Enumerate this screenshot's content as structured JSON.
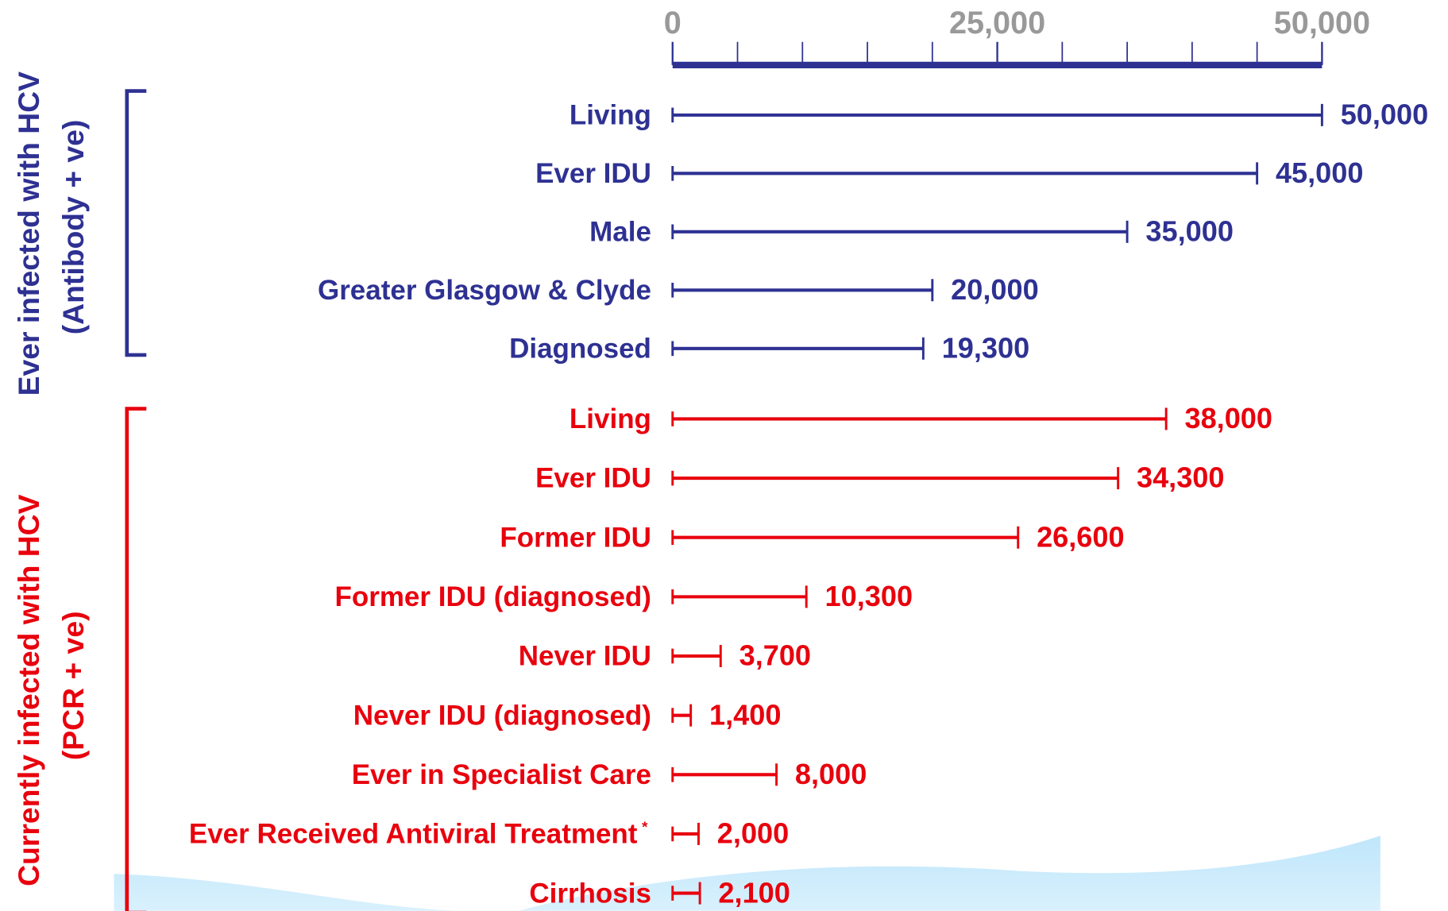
{
  "chart_data": {
    "type": "bar",
    "orientation": "horizontal",
    "xlim": [
      0,
      50000
    ],
    "xticks": [
      0,
      {
        "value": 25000,
        "label": "25,000"
      },
      {
        "value": 50000,
        "label": "50,000"
      }
    ],
    "xminor_ticks": [
      5000,
      10000,
      15000,
      20000,
      30000,
      35000,
      40000,
      45000
    ],
    "axis_color": "#2e3192",
    "tick_label_color": "#999999",
    "groups": [
      {
        "name": "Ever infected with HCV",
        "subname": "(Antibody + ve)",
        "color": "#2e3192",
        "categories": [
          "Living",
          "Ever IDU",
          "Male",
          "Greater Glasgow & Clyde",
          "Diagnosed"
        ],
        "category_notes": [
          null,
          null,
          null,
          null,
          null
        ],
        "values": [
          50000,
          45000,
          35000,
          20000,
          19300
        ],
        "value_labels": [
          "50,000",
          "45,000",
          "35,000",
          "20,000",
          "19,300"
        ]
      },
      {
        "name": "Currently infected with HCV",
        "subname": "(PCR + ve)",
        "color": "#e8000d",
        "categories": [
          "Living",
          "Ever IDU",
          "Former IDU",
          "Former IDU (diagnosed)",
          "Never IDU",
          "Never IDU (diagnosed)",
          "Ever in Specialist Care",
          "Ever Received Antiviral Treatment",
          "Cirrhosis"
        ],
        "category_notes": [
          null,
          null,
          null,
          null,
          null,
          null,
          null,
          "*",
          null
        ],
        "values": [
          38000,
          34300,
          26600,
          10300,
          3700,
          1400,
          8000,
          2000,
          2100
        ],
        "value_labels": [
          "38,000",
          "34,300",
          "26,600",
          "10,300",
          "3,700",
          "1,400",
          "8,000",
          "2,000",
          "2,100"
        ]
      }
    ]
  }
}
